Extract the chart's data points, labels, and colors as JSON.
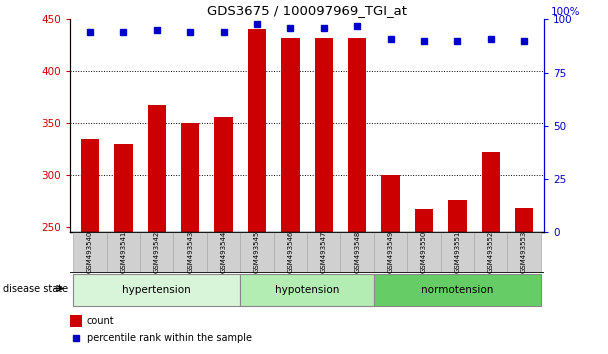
{
  "title": "GDS3675 / 100097969_TGI_at",
  "samples": [
    "GSM493540",
    "GSM493541",
    "GSM493542",
    "GSM493543",
    "GSM493544",
    "GSM493545",
    "GSM493546",
    "GSM493547",
    "GSM493548",
    "GSM493549",
    "GSM493550",
    "GSM493551",
    "GSM493552",
    "GSM493553"
  ],
  "counts": [
    335,
    330,
    367,
    350,
    356,
    441,
    432,
    432,
    432,
    300,
    267,
    276,
    322,
    268
  ],
  "percentile_ranks": [
    94,
    94,
    95,
    94,
    94,
    98,
    96,
    96,
    97,
    91,
    90,
    90,
    91,
    90
  ],
  "groups": [
    {
      "name": "hypertension",
      "start": 0,
      "end": 5,
      "color": "#d9f5d9"
    },
    {
      "name": "hypotension",
      "start": 5,
      "end": 9,
      "color": "#b3edb3"
    },
    {
      "name": "normotension",
      "start": 9,
      "end": 14,
      "color": "#66cc66"
    }
  ],
  "ylim_left": [
    245,
    450
  ],
  "ylim_right": [
    0,
    100
  ],
  "yticks_left": [
    250,
    300,
    350,
    400,
    450
  ],
  "yticks_right": [
    0,
    25,
    50,
    75,
    100
  ],
  "bar_color": "#cc0000",
  "dot_color": "#0000cc",
  "background_color": "#ffffff",
  "tick_label_color_left": "#cc0000",
  "tick_label_color_right": "#0000cc",
  "legend_count_label": "count",
  "legend_pct_label": "percentile rank within the sample",
  "disease_state_label": "disease state"
}
